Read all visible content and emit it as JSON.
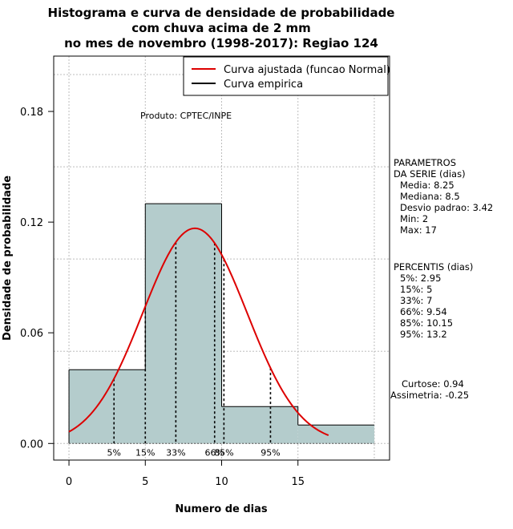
{
  "chart_data": {
    "type": "histogram",
    "title": [
      "Histograma e curva de densidade de probabilidade",
      "com chuva acima de 2 mm",
      "no mes de novembro (1998-2017): Regiao 124"
    ],
    "xlabel": "Numero de dias",
    "ylabel": "Densidade de probabilidade",
    "xlim": [
      -1,
      21
    ],
    "ylim": [
      -0.009,
      0.21
    ],
    "x_ticks": [
      0,
      5,
      10,
      15
    ],
    "y_ticks": [
      0.0,
      0.06,
      0.12,
      0.18
    ],
    "y_tick_labels": [
      "0.00",
      "0.06",
      "0.12",
      "0.18"
    ],
    "grid": true,
    "bins": [
      {
        "from": 0,
        "to": 5,
        "density": 0.04
      },
      {
        "from": 5,
        "to": 10,
        "density": 0.13
      },
      {
        "from": 10,
        "to": 15,
        "density": 0.02
      },
      {
        "from": 15,
        "to": 20,
        "density": 0.01
      }
    ],
    "bar_color": "#b4cccc",
    "normal_fit": {
      "mean": 8.25,
      "sd": 3.42,
      "x_from": 0,
      "x_to": 17,
      "color": "#dd0000"
    },
    "percentiles": [
      {
        "label": "5%",
        "x": 2.95
      },
      {
        "label": "15%",
        "x": 5
      },
      {
        "label": "33%",
        "x": 7
      },
      {
        "label": "66%",
        "x": 9.54
      },
      {
        "label": "85%",
        "x": 10.15
      },
      {
        "label": "95%",
        "x": 13.2
      }
    ],
    "legend": {
      "position": "top-right",
      "entries": [
        {
          "label": "Curva ajustada (funcao Normal)",
          "color": "#dd0000"
        },
        {
          "label": "Curva empirica",
          "color": "#000000"
        }
      ]
    },
    "product_label": "Produto: CPTEC/INPE",
    "parametros": {
      "header": [
        "PARAMETROS",
        "DA SERIE (dias)"
      ],
      "items": [
        "Media: 8.25",
        "Mediana: 8.5",
        "Desvio padrao: 3.42",
        "Min: 2",
        "Max: 17"
      ]
    },
    "percentis": {
      "header": "PERCENTIS (dias)",
      "items": [
        "5%: 2.95",
        "15%: 5",
        "33%: 7",
        "66%: 9.54",
        "85%: 10.15",
        "95%: 13.2"
      ]
    },
    "stats": [
      "Curtose: 0.94",
      "Assimetria: -0.25"
    ]
  }
}
